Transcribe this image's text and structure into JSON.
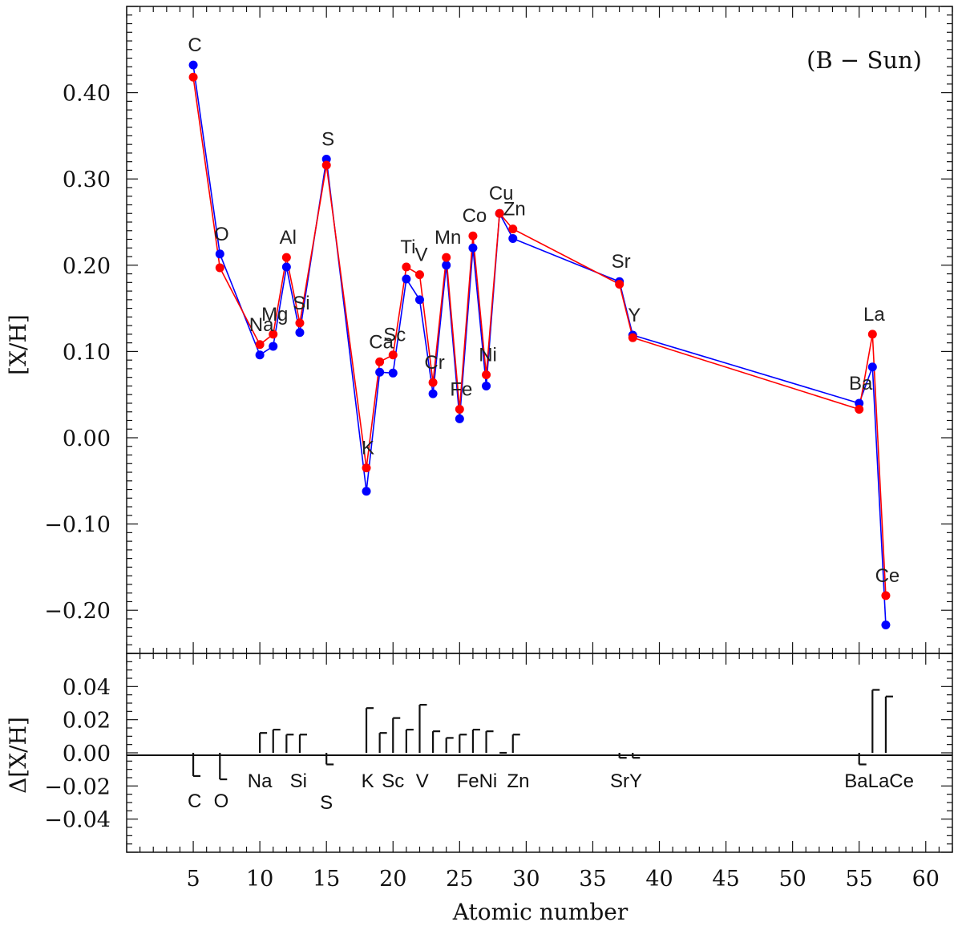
{
  "chart_data": [
    {
      "type": "line",
      "panel": "top",
      "title": "",
      "annotation": "(B − Sun)",
      "xlabel": "Atomic number",
      "ylabel": "[X/H]",
      "xlim": [
        0,
        62
      ],
      "ylim": [
        -0.25,
        0.5
      ],
      "xticks": [
        5,
        10,
        15,
        20,
        25,
        30,
        35,
        40,
        45,
        50,
        55,
        60
      ],
      "yticks": [
        -0.2,
        -0.1,
        0.0,
        0.1,
        0.2,
        0.3,
        0.4
      ],
      "ytick_labels": [
        "−0.20",
        "−0.10",
        "0.00",
        "0.10",
        "0.20",
        "0.30",
        "0.40"
      ],
      "xtick_labels": [
        "5",
        "10",
        "15",
        "20",
        "25",
        "30",
        "35",
        "40",
        "45",
        "50",
        "55",
        "60"
      ],
      "elements": [
        {
          "label": "C",
          "z": 6
        },
        {
          "label": "O",
          "z": 8
        },
        {
          "label": "Na",
          "z": 11
        },
        {
          "label": "Mg",
          "z": 12
        },
        {
          "label": "Al",
          "z": 13
        },
        {
          "label": "Si",
          "z": 14
        },
        {
          "label": "S",
          "z": 16
        },
        {
          "label": "K",
          "z": 19
        },
        {
          "label": "Ca",
          "z": 20
        },
        {
          "label": "Sc",
          "z": 21
        },
        {
          "label": "Ti",
          "z": 22
        },
        {
          "label": "V",
          "z": 23
        },
        {
          "label": "Cr",
          "z": 24
        },
        {
          "label": "Mn",
          "z": 25
        },
        {
          "label": "Fe",
          "z": 26
        },
        {
          "label": "Co",
          "z": 27
        },
        {
          "label": "Ni",
          "z": 28
        },
        {
          "label": "Cu",
          "z": 29
        },
        {
          "label": "Zn",
          "z": 30
        },
        {
          "label": "Sr",
          "z": 38
        },
        {
          "label": "Y",
          "z": 39
        },
        {
          "label": "Ba",
          "z": 56
        },
        {
          "label": "La",
          "z": 57
        },
        {
          "label": "Ce",
          "z": 58
        }
      ],
      "series": [
        {
          "name": "blue",
          "color": "#0000ff",
          "x": [
            5,
            7,
            10,
            11,
            12,
            13,
            15,
            18,
            19,
            20,
            21,
            22,
            23,
            24,
            25,
            26,
            27,
            28,
            29,
            37,
            38,
            55,
            56,
            57
          ],
          "values": [
            0.432,
            0.213,
            0.096,
            0.106,
            0.198,
            0.122,
            0.323,
            -0.062,
            0.076,
            0.075,
            0.184,
            0.16,
            0.051,
            0.2,
            0.022,
            0.22,
            0.06,
            0.26,
            0.231,
            0.181,
            0.119,
            0.04,
            0.082,
            -0.217
          ]
        },
        {
          "name": "red",
          "color": "#ff0000",
          "x": [
            5,
            7,
            10,
            11,
            12,
            13,
            15,
            18,
            19,
            20,
            21,
            22,
            23,
            24,
            25,
            26,
            27,
            28,
            29,
            37,
            38,
            55,
            56,
            57
          ],
          "values": [
            0.418,
            0.197,
            0.108,
            0.12,
            0.209,
            0.133,
            0.316,
            -0.035,
            0.088,
            0.096,
            0.198,
            0.189,
            0.064,
            0.209,
            0.033,
            0.234,
            0.073,
            0.26,
            0.242,
            0.178,
            0.116,
            0.033,
            0.12,
            -0.183
          ]
        }
      ]
    },
    {
      "type": "bar",
      "panel": "bottom",
      "xlabel": "Atomic number",
      "ylabel": "Δ[X/H]",
      "xlim": [
        0,
        62
      ],
      "ylim": [
        -0.06,
        0.06
      ],
      "yticks": [
        -0.04,
        -0.02,
        0.0,
        0.02,
        0.04
      ],
      "ytick_labels": [
        "−0.04",
        "−0.02",
        "0.00",
        "0.02",
        "0.04"
      ],
      "x": [
        5,
        7,
        10,
        11,
        12,
        13,
        15,
        18,
        19,
        20,
        21,
        22,
        23,
        24,
        25,
        26,
        27,
        28,
        29,
        37,
        38,
        55,
        56,
        57
      ],
      "values": [
        -0.014,
        -0.016,
        0.012,
        0.014,
        0.011,
        0.011,
        -0.007,
        0.027,
        0.012,
        0.021,
        0.014,
        0.029,
        0.013,
        0.009,
        0.011,
        0.014,
        0.013,
        0.0,
        0.011,
        -0.003,
        -0.003,
        -0.007,
        0.038,
        0.034
      ],
      "labels": [
        {
          "text": "C",
          "x": 5.1,
          "y": -0.029
        },
        {
          "text": "O",
          "x": 7.1,
          "y": -0.029
        },
        {
          "text": "Na",
          "x": 10.0,
          "y": -0.017
        },
        {
          "text": "Si",
          "x": 12.9,
          "y": -0.017
        },
        {
          "text": "S",
          "x": 15.0,
          "y": -0.03
        },
        {
          "text": "K",
          "x": 18.1,
          "y": -0.017
        },
        {
          "text": "Sc",
          "x": 20.0,
          "y": -0.017
        },
        {
          "text": "V",
          "x": 22.2,
          "y": -0.017
        },
        {
          "text": "FeNi",
          "x": 26.3,
          "y": -0.017
        },
        {
          "text": "Zn",
          "x": 29.4,
          "y": -0.017
        },
        {
          "text": "SrY",
          "x": 37.5,
          "y": -0.017
        },
        {
          "text": "BaLaCe",
          "x": 56.5,
          "y": -0.017
        }
      ]
    }
  ]
}
